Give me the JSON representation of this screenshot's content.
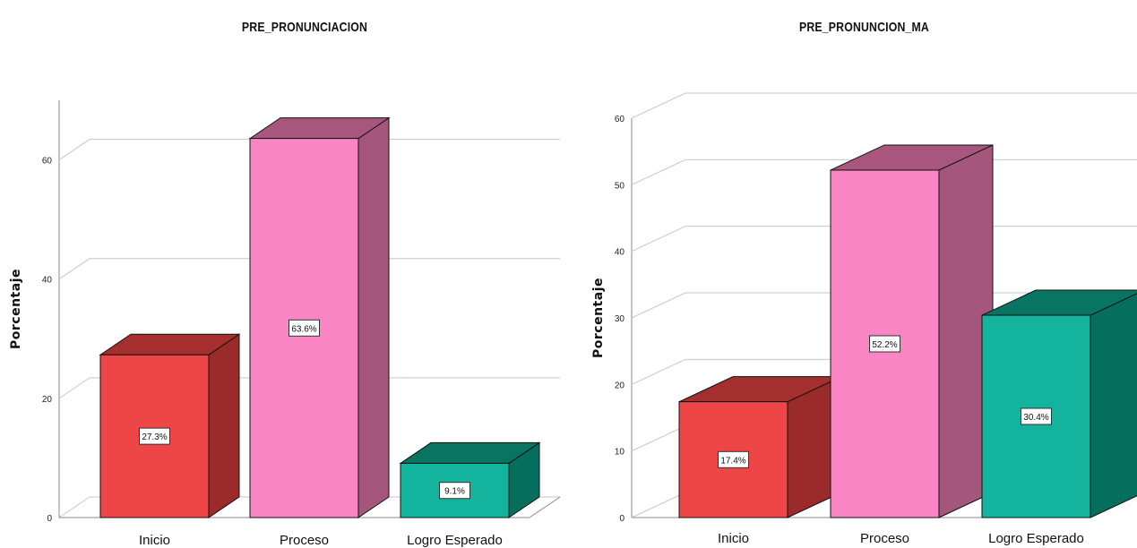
{
  "chart_data": [
    {
      "type": "bar",
      "title": "PRE_PRONUNCIACION",
      "ylabel": "Porcentaje",
      "xlabel": "",
      "categories": [
        "Inicio",
        "Proceso",
        "Logro Esperado"
      ],
      "values": [
        27.3,
        63.6,
        9.1
      ],
      "data_labels": [
        "27.3%",
        "63.6%",
        "9.1%"
      ],
      "ylim": [
        0,
        70
      ],
      "yticks": [
        0,
        20,
        40,
        60
      ],
      "gridlines": [
        0,
        20,
        40,
        60
      ],
      "grid": true,
      "style": "3d"
    },
    {
      "type": "bar",
      "title": "PRE_PRONUNCION_MA",
      "ylabel": "Porcentaje",
      "xlabel": "",
      "categories": [
        "Inicio",
        "Proceso",
        "Logro Esperado"
      ],
      "values": [
        17.4,
        52.2,
        30.4
      ],
      "data_labels": [
        "17.4%",
        "52.2%",
        "30.4%"
      ],
      "ylim": [
        0,
        60
      ],
      "yticks": [
        0,
        10,
        20,
        30,
        40,
        50,
        60
      ],
      "gridlines": [
        0,
        10,
        20,
        30,
        40,
        50,
        60
      ],
      "grid": true,
      "style": "3d"
    }
  ],
  "colors": {
    "inicio": {
      "front": "#ee4646",
      "side": "#9b2a2a",
      "top": "#a52f2f"
    },
    "proceso": {
      "front": "#f985c4",
      "side": "#a5567b",
      "top": "#a8567e"
    },
    "logro": {
      "front": "#13b39d",
      "side": "#066e5d",
      "top": "#077562"
    },
    "grid": "#c6c6c6",
    "axis": "#888888"
  }
}
